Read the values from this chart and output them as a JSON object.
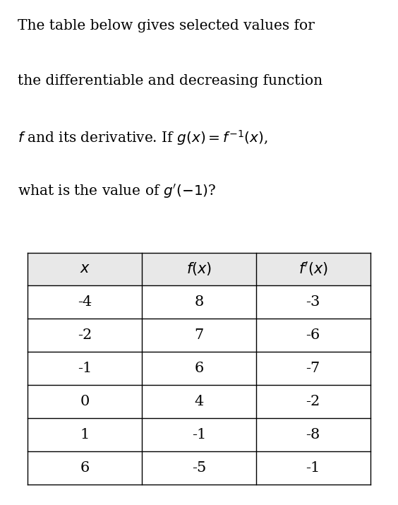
{
  "col_headers": [
    "$x$",
    "$f(x)$",
    "$f'(x)$"
  ],
  "rows": [
    [
      "-4",
      "8",
      "-3"
    ],
    [
      "-2",
      "7",
      "-6"
    ],
    [
      "-1",
      "6",
      "-7"
    ],
    [
      "0",
      "4",
      "-2"
    ],
    [
      "1",
      "-1",
      "-8"
    ],
    [
      "6",
      "-5",
      "-1"
    ]
  ],
  "header_bg": "#e8e8e8",
  "cell_bg": "#ffffff",
  "border_color": "#000000",
  "text_color": "#000000",
  "font_size_text": 14.5,
  "font_size_table": 15,
  "fig_width": 5.64,
  "fig_height": 7.15
}
